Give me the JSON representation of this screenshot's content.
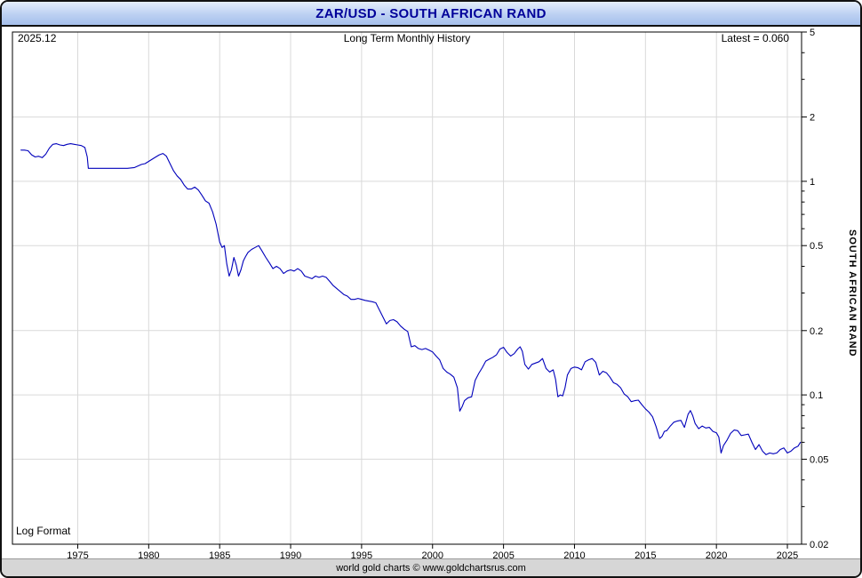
{
  "header": {
    "title": "ZAR/USD - SOUTH AFRICAN RAND"
  },
  "footer": {
    "credit": "world gold charts © www.goldchartsrus.com"
  },
  "chart_data": {
    "type": "line",
    "title": "ZAR/USD - SOUTH AFRICAN RAND",
    "subtitle": "Long Term Monthly History",
    "date_label": "2025.12",
    "latest_label": "Latest = 0.060",
    "latest_value": 0.06,
    "scale_label": "Log Format",
    "y_axis_title": "SOUTH AFRICAN RAND",
    "y_scale": "log",
    "grid": true,
    "line_color": "#0000bb",
    "grid_color": "#d9d9d9",
    "x_range": [
      1970.4,
      2026.0
    ],
    "y_range": [
      0.02,
      5
    ],
    "x_ticks": [
      {
        "value": 1975,
        "label": "1975"
      },
      {
        "value": 1980,
        "label": "1980"
      },
      {
        "value": 1985,
        "label": "1985"
      },
      {
        "value": 1990,
        "label": "1990"
      },
      {
        "value": 1995,
        "label": "1995"
      },
      {
        "value": 2000,
        "label": "2000"
      },
      {
        "value": 2005,
        "label": "2005"
      },
      {
        "value": 2010,
        "label": "2010"
      },
      {
        "value": 2015,
        "label": "2015"
      },
      {
        "value": 2020,
        "label": "2020"
      },
      {
        "value": 2025,
        "label": "2025"
      }
    ],
    "y_ticks_major": [
      {
        "value": 5,
        "label": "5"
      },
      {
        "value": 2,
        "label": "2"
      },
      {
        "value": 1,
        "label": "1"
      },
      {
        "value": 0.5,
        "label": "0.5"
      },
      {
        "value": 0.2,
        "label": "0.2"
      },
      {
        "value": 0.1,
        "label": "0.1"
      },
      {
        "value": 0.05,
        "label": "0.05"
      },
      {
        "value": 0.02,
        "label": "0.02"
      }
    ],
    "y_ticks_minor": [
      4,
      3,
      0.9,
      0.8,
      0.7,
      0.6,
      0.4,
      0.3,
      0.09,
      0.08,
      0.07,
      0.06,
      0.04,
      0.03
    ],
    "series": [
      {
        "name": "ZAR/USD monthly",
        "points": [
          [
            1971.0,
            1.4
          ],
          [
            1971.25,
            1.4
          ],
          [
            1971.5,
            1.39
          ],
          [
            1971.75,
            1.33
          ],
          [
            1972.0,
            1.3
          ],
          [
            1972.25,
            1.31
          ],
          [
            1972.5,
            1.29
          ],
          [
            1972.75,
            1.34
          ],
          [
            1973.0,
            1.43
          ],
          [
            1973.25,
            1.49
          ],
          [
            1973.5,
            1.5
          ],
          [
            1973.75,
            1.48
          ],
          [
            1974.0,
            1.47
          ],
          [
            1974.25,
            1.49
          ],
          [
            1974.5,
            1.5
          ],
          [
            1974.75,
            1.49
          ],
          [
            1975.0,
            1.48
          ],
          [
            1975.25,
            1.47
          ],
          [
            1975.5,
            1.44
          ],
          [
            1975.67,
            1.3
          ],
          [
            1975.75,
            1.15
          ],
          [
            1976.0,
            1.15
          ],
          [
            1976.5,
            1.15
          ],
          [
            1977.0,
            1.15
          ],
          [
            1977.5,
            1.15
          ],
          [
            1978.0,
            1.15
          ],
          [
            1978.5,
            1.15
          ],
          [
            1979.0,
            1.16
          ],
          [
            1979.25,
            1.18
          ],
          [
            1979.5,
            1.2
          ],
          [
            1979.75,
            1.21
          ],
          [
            1980.0,
            1.24
          ],
          [
            1980.25,
            1.27
          ],
          [
            1980.5,
            1.3
          ],
          [
            1980.75,
            1.33
          ],
          [
            1981.0,
            1.35
          ],
          [
            1981.25,
            1.31
          ],
          [
            1981.5,
            1.21
          ],
          [
            1981.75,
            1.12
          ],
          [
            1982.0,
            1.06
          ],
          [
            1982.25,
            1.02
          ],
          [
            1982.5,
            0.96
          ],
          [
            1982.75,
            0.92
          ],
          [
            1983.0,
            0.92
          ],
          [
            1983.25,
            0.94
          ],
          [
            1983.5,
            0.91
          ],
          [
            1983.75,
            0.86
          ],
          [
            1984.0,
            0.81
          ],
          [
            1984.25,
            0.79
          ],
          [
            1984.5,
            0.72
          ],
          [
            1984.75,
            0.63
          ],
          [
            1985.0,
            0.52
          ],
          [
            1985.17,
            0.49
          ],
          [
            1985.33,
            0.5
          ],
          [
            1985.5,
            0.41
          ],
          [
            1985.67,
            0.36
          ],
          [
            1985.83,
            0.385
          ],
          [
            1986.0,
            0.44
          ],
          [
            1986.17,
            0.405
          ],
          [
            1986.33,
            0.36
          ],
          [
            1986.5,
            0.385
          ],
          [
            1986.67,
            0.425
          ],
          [
            1986.83,
            0.445
          ],
          [
            1987.0,
            0.465
          ],
          [
            1987.25,
            0.48
          ],
          [
            1987.5,
            0.49
          ],
          [
            1987.75,
            0.5
          ],
          [
            1988.0,
            0.47
          ],
          [
            1988.25,
            0.44
          ],
          [
            1988.5,
            0.415
          ],
          [
            1988.75,
            0.39
          ],
          [
            1989.0,
            0.4
          ],
          [
            1989.25,
            0.39
          ],
          [
            1989.5,
            0.37
          ],
          [
            1989.75,
            0.38
          ],
          [
            1990.0,
            0.385
          ],
          [
            1990.25,
            0.38
          ],
          [
            1990.5,
            0.39
          ],
          [
            1990.75,
            0.38
          ],
          [
            1991.0,
            0.36
          ],
          [
            1991.25,
            0.355
          ],
          [
            1991.5,
            0.35
          ],
          [
            1991.75,
            0.36
          ],
          [
            1992.0,
            0.355
          ],
          [
            1992.25,
            0.36
          ],
          [
            1992.5,
            0.355
          ],
          [
            1992.75,
            0.34
          ],
          [
            1993.0,
            0.325
          ],
          [
            1993.25,
            0.315
          ],
          [
            1993.5,
            0.305
          ],
          [
            1993.75,
            0.295
          ],
          [
            1994.0,
            0.29
          ],
          [
            1994.25,
            0.28
          ],
          [
            1994.5,
            0.28
          ],
          [
            1994.75,
            0.283
          ],
          [
            1995.0,
            0.28
          ],
          [
            1995.25,
            0.277
          ],
          [
            1995.5,
            0.275
          ],
          [
            1995.75,
            0.273
          ],
          [
            1996.0,
            0.27
          ],
          [
            1996.25,
            0.25
          ],
          [
            1996.5,
            0.232
          ],
          [
            1996.75,
            0.215
          ],
          [
            1997.0,
            0.223
          ],
          [
            1997.25,
            0.225
          ],
          [
            1997.5,
            0.22
          ],
          [
            1997.75,
            0.21
          ],
          [
            1998.0,
            0.203
          ],
          [
            1998.25,
            0.198
          ],
          [
            1998.5,
            0.168
          ],
          [
            1998.75,
            0.17
          ],
          [
            1999.0,
            0.165
          ],
          [
            1999.25,
            0.163
          ],
          [
            1999.5,
            0.165
          ],
          [
            1999.75,
            0.162
          ],
          [
            2000.0,
            0.159
          ],
          [
            2000.25,
            0.152
          ],
          [
            2000.5,
            0.146
          ],
          [
            2000.75,
            0.133
          ],
          [
            2001.0,
            0.128
          ],
          [
            2001.25,
            0.125
          ],
          [
            2001.5,
            0.121
          ],
          [
            2001.75,
            0.108
          ],
          [
            2001.92,
            0.084
          ],
          [
            2002.08,
            0.088
          ],
          [
            2002.25,
            0.094
          ],
          [
            2002.5,
            0.097
          ],
          [
            2002.75,
            0.098
          ],
          [
            2003.0,
            0.117
          ],
          [
            2003.25,
            0.126
          ],
          [
            2003.5,
            0.134
          ],
          [
            2003.75,
            0.144
          ],
          [
            2004.0,
            0.147
          ],
          [
            2004.25,
            0.15
          ],
          [
            2004.5,
            0.154
          ],
          [
            2004.75,
            0.164
          ],
          [
            2005.0,
            0.167
          ],
          [
            2005.25,
            0.158
          ],
          [
            2005.5,
            0.152
          ],
          [
            2005.75,
            0.156
          ],
          [
            2006.0,
            0.164
          ],
          [
            2006.17,
            0.168
          ],
          [
            2006.33,
            0.16
          ],
          [
            2006.5,
            0.139
          ],
          [
            2006.75,
            0.132
          ],
          [
            2007.0,
            0.139
          ],
          [
            2007.25,
            0.141
          ],
          [
            2007.5,
            0.143
          ],
          [
            2007.75,
            0.148
          ],
          [
            2008.0,
            0.133
          ],
          [
            2008.25,
            0.128
          ],
          [
            2008.5,
            0.131
          ],
          [
            2008.67,
            0.118
          ],
          [
            2008.83,
            0.098
          ],
          [
            2009.0,
            0.1
          ],
          [
            2009.17,
            0.099
          ],
          [
            2009.33,
            0.108
          ],
          [
            2009.5,
            0.124
          ],
          [
            2009.75,
            0.133
          ],
          [
            2010.0,
            0.135
          ],
          [
            2010.25,
            0.134
          ],
          [
            2010.5,
            0.131
          ],
          [
            2010.75,
            0.143
          ],
          [
            2011.0,
            0.146
          ],
          [
            2011.25,
            0.148
          ],
          [
            2011.5,
            0.142
          ],
          [
            2011.75,
            0.124
          ],
          [
            2012.0,
            0.129
          ],
          [
            2012.25,
            0.127
          ],
          [
            2012.5,
            0.121
          ],
          [
            2012.75,
            0.114
          ],
          [
            2013.0,
            0.112
          ],
          [
            2013.25,
            0.108
          ],
          [
            2013.5,
            0.101
          ],
          [
            2013.75,
            0.098
          ],
          [
            2014.0,
            0.093
          ],
          [
            2014.25,
            0.094
          ],
          [
            2014.5,
            0.0945
          ],
          [
            2014.75,
            0.09
          ],
          [
            2015.0,
            0.086
          ],
          [
            2015.25,
            0.083
          ],
          [
            2015.5,
            0.079
          ],
          [
            2015.75,
            0.071
          ],
          [
            2016.0,
            0.0625
          ],
          [
            2016.17,
            0.064
          ],
          [
            2016.33,
            0.0675
          ],
          [
            2016.5,
            0.068
          ],
          [
            2016.75,
            0.0715
          ],
          [
            2017.0,
            0.0745
          ],
          [
            2017.25,
            0.0755
          ],
          [
            2017.5,
            0.076
          ],
          [
            2017.75,
            0.0705
          ],
          [
            2018.0,
            0.081
          ],
          [
            2018.17,
            0.0845
          ],
          [
            2018.33,
            0.08
          ],
          [
            2018.5,
            0.0735
          ],
          [
            2018.75,
            0.0695
          ],
          [
            2019.0,
            0.0715
          ],
          [
            2019.25,
            0.07
          ],
          [
            2019.5,
            0.0705
          ],
          [
            2019.75,
            0.0675
          ],
          [
            2020.0,
            0.0665
          ],
          [
            2020.17,
            0.0635
          ],
          [
            2020.33,
            0.0535
          ],
          [
            2020.5,
            0.058
          ],
          [
            2020.75,
            0.0615
          ],
          [
            2021.0,
            0.066
          ],
          [
            2021.25,
            0.0685
          ],
          [
            2021.5,
            0.068
          ],
          [
            2021.75,
            0.0645
          ],
          [
            2022.0,
            0.065
          ],
          [
            2022.25,
            0.0655
          ],
          [
            2022.5,
            0.06
          ],
          [
            2022.75,
            0.0555
          ],
          [
            2023.0,
            0.0585
          ],
          [
            2023.25,
            0.0545
          ],
          [
            2023.5,
            0.0525
          ],
          [
            2023.75,
            0.0535
          ],
          [
            2024.0,
            0.053
          ],
          [
            2024.25,
            0.0535
          ],
          [
            2024.5,
            0.0555
          ],
          [
            2024.75,
            0.0565
          ],
          [
            2025.0,
            0.0535
          ],
          [
            2025.25,
            0.0545
          ],
          [
            2025.5,
            0.0565
          ],
          [
            2025.75,
            0.0575
          ],
          [
            2025.92,
            0.06
          ]
        ]
      }
    ]
  }
}
